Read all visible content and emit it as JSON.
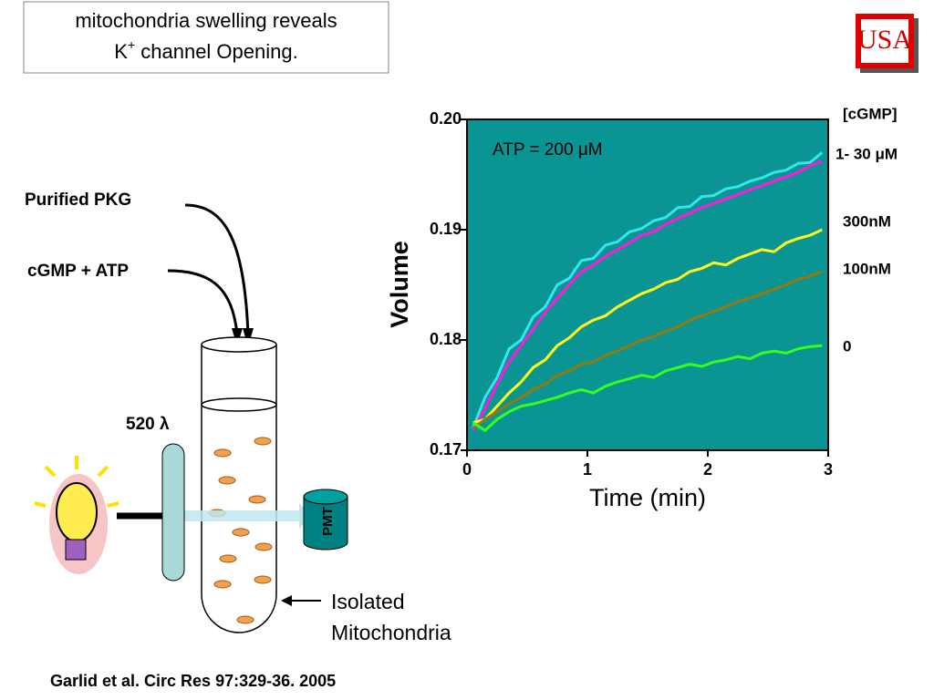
{
  "title": {
    "line1": "mitochondria swelling reveals",
    "line2_start": "K",
    "line2_sup": "+",
    "line2_end": " channel Opening."
  },
  "logo": "USA",
  "diagram": {
    "pkg_label": "Purified PKG",
    "cgmp_label": "cGMP + ATP",
    "filter_label": "520 λ",
    "detector_label": "PMT",
    "sample_label": [
      "Isolated",
      "Mitochondria"
    ]
  },
  "citation": "Garlid et al. Circ Res 97:329-36. 2005",
  "chart_data": {
    "type": "line",
    "x_label": "Time (min)",
    "y_label": "Volume",
    "annotation": "ATP = 200 μM",
    "legend_title": "[cGMP]",
    "xlim": [
      0,
      3
    ],
    "xticks": [
      0,
      1,
      2,
      3
    ],
    "ylim": [
      0.17,
      0.2
    ],
    "yticks": [
      0.17,
      0.18,
      0.19,
      {
        "value": 0.2,
        "label": "0.20"
      }
    ],
    "x": [
      0.05,
      0.15,
      0.25,
      0.35,
      0.45,
      0.55,
      0.65,
      0.75,
      0.85,
      0.95,
      1.05,
      1.15,
      1.25,
      1.35,
      1.45,
      1.55,
      1.65,
      1.75,
      1.85,
      1.95,
      2.05,
      2.15,
      2.25,
      2.35,
      2.45,
      2.55,
      2.65,
      2.75,
      2.85,
      2.95
    ],
    "series": [
      {
        "color": "#33e6f0",
        "values": [
          0.172,
          0.1748,
          0.1766,
          0.1792,
          0.18,
          0.1821,
          0.183,
          0.185,
          0.1856,
          0.1872,
          0.1874,
          0.1886,
          0.1889,
          0.1898,
          0.1901,
          0.1908,
          0.1911,
          0.192,
          0.1921,
          0.193,
          0.1931,
          0.1937,
          0.1939,
          0.1944,
          0.1947,
          0.1952,
          0.1954,
          0.196,
          0.1961,
          0.197
        ]
      },
      {
        "name": "1- 30 μM",
        "color": "#ff1ad9",
        "values": [
          0.1718,
          0.1738,
          0.176,
          0.178,
          0.1795,
          0.181,
          0.1825,
          0.1838,
          0.185,
          0.1862,
          0.1868,
          0.1876,
          0.1882,
          0.1888,
          0.1895,
          0.1898,
          0.1905,
          0.191,
          0.1915,
          0.192,
          0.1924,
          0.1928,
          0.1932,
          0.1936,
          0.194,
          0.1944,
          0.1948,
          0.1952,
          0.1958,
          0.1962
        ]
      },
      {
        "name": "300nM",
        "color": "#ffff1a",
        "values": [
          0.1725,
          0.1728,
          0.174,
          0.1752,
          0.1762,
          0.1775,
          0.1782,
          0.1795,
          0.1802,
          0.1812,
          0.1818,
          0.1822,
          0.183,
          0.1836,
          0.1842,
          0.1846,
          0.1852,
          0.1855,
          0.1862,
          0.1865,
          0.187,
          0.1868,
          0.1874,
          0.1878,
          0.1882,
          0.188,
          0.1888,
          0.1892,
          0.1895,
          0.19
        ]
      },
      {
        "name": "100nM",
        "color": "#8f7a12",
        "values": [
          0.172,
          0.1728,
          0.1735,
          0.1742,
          0.1748,
          0.1755,
          0.176,
          0.1768,
          0.1772,
          0.1778,
          0.178,
          0.1786,
          0.179,
          0.1795,
          0.18,
          0.1803,
          0.1808,
          0.1812,
          0.1818,
          0.1822,
          0.1826,
          0.183,
          0.1835,
          0.1838,
          0.1842,
          0.1846,
          0.185,
          0.1855,
          0.1858,
          0.1862
        ]
      },
      {
        "name": "0",
        "color": "#33ff1a",
        "values": [
          0.1725,
          0.1718,
          0.1728,
          0.1735,
          0.174,
          0.1742,
          0.1745,
          0.1748,
          0.1752,
          0.1755,
          0.1752,
          0.1758,
          0.1762,
          0.1765,
          0.1768,
          0.1766,
          0.1772,
          0.1775,
          0.1778,
          0.1776,
          0.178,
          0.1782,
          0.1785,
          0.1783,
          0.1788,
          0.179,
          0.1788,
          0.1792,
          0.1794,
          0.1795
        ]
      }
    ]
  }
}
